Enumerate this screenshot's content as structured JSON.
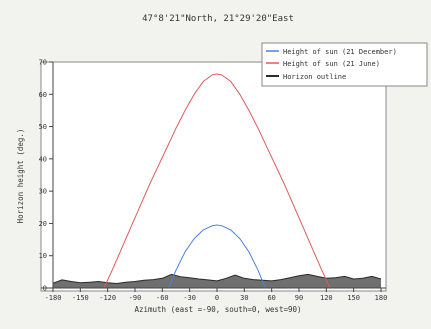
{
  "chart_data": {
    "type": "line",
    "title": "47°8'21\"North, 21°29'20\"East",
    "xlabel": "Azimuth (east =-90, south=0, west=90)",
    "ylabel": "Horizon height (deg.)",
    "xlim": [
      -180,
      180
    ],
    "ylim": [
      0,
      70
    ],
    "xticks": [
      -180,
      -150,
      -120,
      -90,
      -60,
      -30,
      0,
      30,
      60,
      90,
      120,
      150,
      180
    ],
    "yticks": [
      0,
      10,
      20,
      30,
      40,
      50,
      60,
      70
    ],
    "grid": false,
    "legend_position": "top-right",
    "series": [
      {
        "name": "Height of sun (21 December)",
        "color": "#4f7fe0",
        "x": [
          -53,
          -45,
          -35,
          -25,
          -15,
          -5,
          0,
          5,
          15,
          25,
          35,
          45,
          53
        ],
        "y": [
          0,
          5.5,
          11.2,
          15.3,
          18.0,
          19.3,
          19.5,
          19.3,
          18.0,
          15.3,
          11.2,
          5.5,
          0
        ]
      },
      {
        "name": "Height of sun (21 June)",
        "color": "#e05a5a",
        "x": [
          -124,
          -115,
          -105,
          -95,
          -85,
          -75,
          -65,
          -55,
          -45,
          -35,
          -25,
          -15,
          -5,
          0,
          5,
          15,
          25,
          35,
          45,
          55,
          65,
          75,
          85,
          95,
          105,
          115,
          124
        ],
        "y": [
          0,
          5.5,
          12.0,
          18.5,
          25.0,
          31.5,
          37.5,
          43.5,
          49.5,
          55.0,
          60.0,
          64.0,
          66.0,
          66.3,
          66.0,
          64.0,
          60.0,
          55.0,
          49.5,
          43.5,
          37.5,
          31.5,
          25.0,
          18.5,
          12.0,
          5.5,
          0
        ]
      },
      {
        "name": "Horizon outline",
        "color": "#2b2b2b",
        "fill": "#6f6f6f",
        "x": [
          -180,
          -170,
          -160,
          -150,
          -140,
          -130,
          -120,
          -110,
          -100,
          -90,
          -80,
          -70,
          -60,
          -50,
          -40,
          -30,
          -20,
          -10,
          0,
          10,
          20,
          30,
          40,
          50,
          60,
          70,
          80,
          90,
          100,
          110,
          120,
          130,
          140,
          150,
          160,
          170,
          180
        ],
        "y": [
          1.5,
          2.5,
          2.0,
          1.6,
          1.8,
          2.0,
          1.6,
          1.4,
          1.8,
          2.0,
          2.4,
          2.6,
          3.0,
          4.2,
          3.5,
          3.2,
          2.8,
          2.5,
          2.2,
          3.0,
          4.0,
          3.0,
          2.6,
          2.4,
          2.2,
          2.6,
          3.2,
          3.8,
          4.2,
          3.6,
          3.0,
          3.2,
          3.6,
          2.8,
          3.0,
          3.6,
          2.8
        ]
      }
    ]
  }
}
